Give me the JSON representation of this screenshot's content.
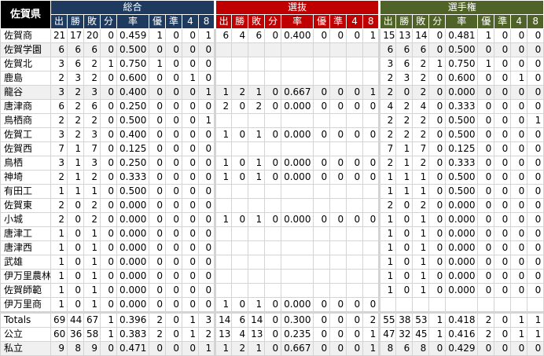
{
  "prefecture": "佐賀県",
  "colors": {
    "group_0": "#1f3a5f",
    "group_1": "#c00000",
    "group_2": "#4f6228"
  },
  "groups": [
    "総合",
    "選抜",
    "選手権"
  ],
  "columns": [
    "出",
    "勝",
    "敗",
    "分",
    "率",
    "優",
    "準",
    "4",
    "8"
  ],
  "rows": [
    {
      "name": "佐賀商",
      "total": [
        "21",
        "17",
        "20",
        "0",
        "0.459",
        "1",
        "0",
        "0",
        "1"
      ],
      "senbatsu": [
        "6",
        "4",
        "6",
        "0",
        "0.400",
        "0",
        "0",
        "0",
        "1"
      ],
      "senshuken": [
        "15",
        "13",
        "14",
        "0",
        "0.481",
        "1",
        "0",
        "0",
        "0"
      ]
    },
    {
      "name": "佐賀学園",
      "shade": true,
      "total": [
        "6",
        "6",
        "6",
        "0",
        "0.500",
        "0",
        "0",
        "0",
        "0"
      ],
      "senbatsu": [],
      "senshuken": [
        "6",
        "6",
        "6",
        "0",
        "0.500",
        "0",
        "0",
        "0",
        "0"
      ]
    },
    {
      "name": "佐賀北",
      "total": [
        "3",
        "6",
        "2",
        "1",
        "0.750",
        "1",
        "0",
        "0",
        "0"
      ],
      "senbatsu": [],
      "senshuken": [
        "3",
        "6",
        "2",
        "1",
        "0.750",
        "1",
        "0",
        "0",
        "0"
      ]
    },
    {
      "name": "鹿島",
      "total": [
        "2",
        "3",
        "2",
        "0",
        "0.600",
        "0",
        "0",
        "1",
        "0"
      ],
      "senbatsu": [],
      "senshuken": [
        "2",
        "3",
        "2",
        "0",
        "0.600",
        "0",
        "0",
        "1",
        "0"
      ]
    },
    {
      "name": "龍谷",
      "shade": true,
      "total": [
        "3",
        "2",
        "3",
        "0",
        "0.400",
        "0",
        "0",
        "0",
        "1"
      ],
      "senbatsu": [
        "1",
        "2",
        "1",
        "0",
        "0.667",
        "0",
        "0",
        "0",
        "1"
      ],
      "senshuken": [
        "2",
        "0",
        "2",
        "0",
        "0.000",
        "0",
        "0",
        "0",
        "0"
      ]
    },
    {
      "name": "唐津商",
      "total": [
        "6",
        "2",
        "6",
        "0",
        "0.250",
        "0",
        "0",
        "0",
        "0"
      ],
      "senbatsu": [
        "2",
        "0",
        "2",
        "0",
        "0.000",
        "0",
        "0",
        "0",
        "0"
      ],
      "senshuken": [
        "4",
        "2",
        "4",
        "0",
        "0.333",
        "0",
        "0",
        "0",
        "0"
      ]
    },
    {
      "name": "鳥栖商",
      "total": [
        "2",
        "2",
        "2",
        "0",
        "0.500",
        "0",
        "0",
        "0",
        "1"
      ],
      "senbatsu": [],
      "senshuken": [
        "2",
        "2",
        "2",
        "0",
        "0.500",
        "0",
        "0",
        "0",
        "1"
      ]
    },
    {
      "name": "佐賀工",
      "total": [
        "3",
        "2",
        "3",
        "0",
        "0.400",
        "0",
        "0",
        "0",
        "0"
      ],
      "senbatsu": [
        "1",
        "0",
        "1",
        "0",
        "0.000",
        "0",
        "0",
        "0",
        "0"
      ],
      "senshuken": [
        "2",
        "2",
        "2",
        "0",
        "0.500",
        "0",
        "0",
        "0",
        "0"
      ]
    },
    {
      "name": "佐賀西",
      "total": [
        "7",
        "1",
        "7",
        "0",
        "0.125",
        "0",
        "0",
        "0",
        "0"
      ],
      "senbatsu": [],
      "senshuken": [
        "7",
        "1",
        "7",
        "0",
        "0.125",
        "0",
        "0",
        "0",
        "0"
      ]
    },
    {
      "name": "鳥栖",
      "total": [
        "3",
        "1",
        "3",
        "0",
        "0.250",
        "0",
        "0",
        "0",
        "0"
      ],
      "senbatsu": [
        "1",
        "0",
        "1",
        "0",
        "0.000",
        "0",
        "0",
        "0",
        "0"
      ],
      "senshuken": [
        "2",
        "1",
        "2",
        "0",
        "0.333",
        "0",
        "0",
        "0",
        "0"
      ]
    },
    {
      "name": "神埼",
      "total": [
        "2",
        "1",
        "2",
        "0",
        "0.333",
        "0",
        "0",
        "0",
        "0"
      ],
      "senbatsu": [
        "1",
        "0",
        "1",
        "0",
        "0.000",
        "0",
        "0",
        "0",
        "0"
      ],
      "senshuken": [
        "1",
        "1",
        "1",
        "0",
        "0.500",
        "0",
        "0",
        "0",
        "0"
      ]
    },
    {
      "name": "有田工",
      "total": [
        "1",
        "1",
        "1",
        "0",
        "0.500",
        "0",
        "0",
        "0",
        "0"
      ],
      "senbatsu": [],
      "senshuken": [
        "1",
        "1",
        "1",
        "0",
        "0.500",
        "0",
        "0",
        "0",
        "0"
      ]
    },
    {
      "name": "佐賀東",
      "total": [
        "2",
        "0",
        "2",
        "0",
        "0.000",
        "0",
        "0",
        "0",
        "0"
      ],
      "senbatsu": [],
      "senshuken": [
        "2",
        "0",
        "2",
        "0",
        "0.000",
        "0",
        "0",
        "0",
        "0"
      ]
    },
    {
      "name": "小城",
      "total": [
        "2",
        "0",
        "2",
        "0",
        "0.000",
        "0",
        "0",
        "0",
        "0"
      ],
      "senbatsu": [
        "1",
        "0",
        "1",
        "0",
        "0.000",
        "0",
        "0",
        "0",
        "0"
      ],
      "senshuken": [
        "1",
        "0",
        "1",
        "0",
        "0.000",
        "0",
        "0",
        "0",
        "0"
      ]
    },
    {
      "name": "唐津工",
      "total": [
        "1",
        "0",
        "1",
        "0",
        "0.000",
        "0",
        "0",
        "0",
        "0"
      ],
      "senbatsu": [],
      "senshuken": [
        "1",
        "0",
        "1",
        "0",
        "0.000",
        "0",
        "0",
        "0",
        "0"
      ]
    },
    {
      "name": "唐津西",
      "total": [
        "1",
        "0",
        "1",
        "0",
        "0.000",
        "0",
        "0",
        "0",
        "0"
      ],
      "senbatsu": [],
      "senshuken": [
        "1",
        "0",
        "1",
        "0",
        "0.000",
        "0",
        "0",
        "0",
        "0"
      ]
    },
    {
      "name": "武雄",
      "total": [
        "1",
        "0",
        "1",
        "0",
        "0.000",
        "0",
        "0",
        "0",
        "0"
      ],
      "senbatsu": [],
      "senshuken": [
        "1",
        "0",
        "1",
        "0",
        "0.000",
        "0",
        "0",
        "0",
        "0"
      ]
    },
    {
      "name": "伊万里農林",
      "total": [
        "1",
        "0",
        "1",
        "0",
        "0.000",
        "0",
        "0",
        "0",
        "0"
      ],
      "senbatsu": [],
      "senshuken": [
        "1",
        "0",
        "1",
        "0",
        "0.000",
        "0",
        "0",
        "0",
        "0"
      ]
    },
    {
      "name": "佐賀師範",
      "total": [
        "1",
        "0",
        "1",
        "0",
        "0.000",
        "0",
        "0",
        "0",
        "0"
      ],
      "senbatsu": [],
      "senshuken": [
        "1",
        "0",
        "1",
        "0",
        "0.000",
        "0",
        "0",
        "0",
        "0"
      ]
    },
    {
      "name": "伊万里商",
      "total": [
        "1",
        "0",
        "1",
        "0",
        "0.000",
        "0",
        "0",
        "0",
        "0"
      ],
      "senbatsu": [
        "1",
        "0",
        "1",
        "0",
        "0.000",
        "0",
        "0",
        "0",
        "0"
      ],
      "senshuken": []
    },
    {
      "name": "Totals",
      "total_row": true,
      "total": [
        "69",
        "44",
        "67",
        "1",
        "0.396",
        "2",
        "0",
        "1",
        "3"
      ],
      "senbatsu": [
        "14",
        "6",
        "14",
        "0",
        "0.300",
        "0",
        "0",
        "0",
        "2"
      ],
      "senshuken": [
        "55",
        "38",
        "53",
        "1",
        "0.418",
        "2",
        "0",
        "1",
        "1"
      ]
    },
    {
      "name": "公立",
      "total": [
        "60",
        "36",
        "58",
        "1",
        "0.383",
        "2",
        "0",
        "1",
        "2"
      ],
      "senbatsu": [
        "13",
        "4",
        "13",
        "0",
        "0.235",
        "0",
        "0",
        "0",
        "1"
      ],
      "senshuken": [
        "47",
        "32",
        "45",
        "1",
        "0.416",
        "2",
        "0",
        "1",
        "1"
      ]
    },
    {
      "name": "私立",
      "shade": true,
      "total": [
        "9",
        "8",
        "9",
        "0",
        "0.471",
        "0",
        "0",
        "0",
        "1"
      ],
      "senbatsu": [
        "1",
        "2",
        "1",
        "0",
        "0.667",
        "0",
        "0",
        "0",
        "1"
      ],
      "senshuken": [
        "8",
        "6",
        "8",
        "0",
        "0.429",
        "0",
        "0",
        "0",
        "0"
      ]
    }
  ]
}
